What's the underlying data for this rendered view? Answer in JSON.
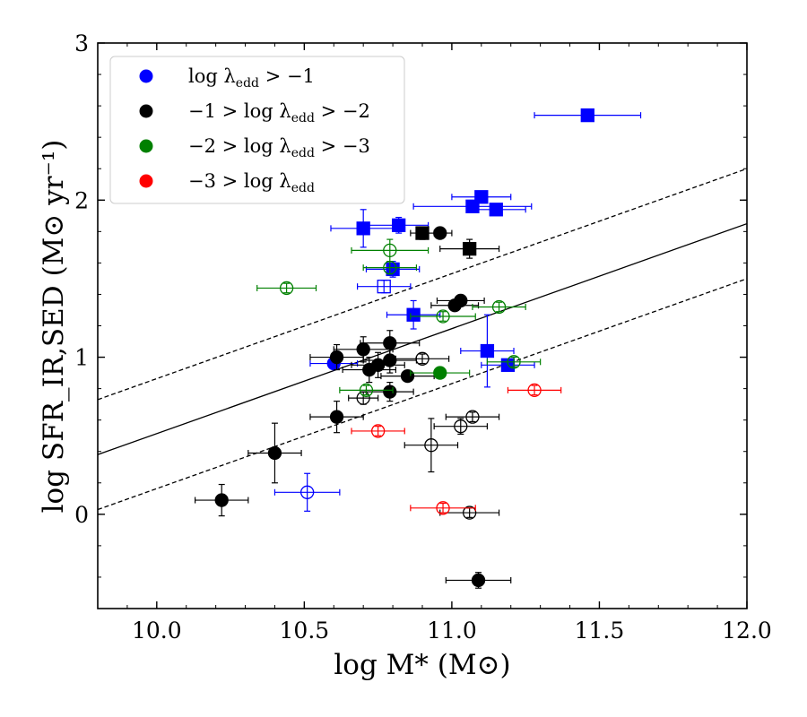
{
  "chart_data": {
    "type": "scatter",
    "xlabel": "log M* (M⊙)",
    "ylabel": "log SFR_IR,SED (M⊙ yr⁻¹)",
    "xlim": [
      9.8,
      12.0
    ],
    "ylim": [
      -0.6,
      3.0
    ],
    "x_ticks": [
      10.0,
      10.5,
      11.0,
      11.5,
      12.0
    ],
    "x_tick_labels": [
      "10.0",
      "10.5",
      "11.0",
      "11.5",
      "12.0"
    ],
    "y_ticks": [
      0,
      1,
      2,
      3
    ],
    "y_tick_labels": [
      "0",
      "1",
      "2",
      "3"
    ],
    "grid": false,
    "legend_position": "top-left",
    "legend": [
      {
        "name": "blue",
        "color": "#0000ff",
        "label_parts": [
          "log λ",
          "edd",
          " > −1"
        ]
      },
      {
        "name": "black",
        "color": "#000000",
        "label_parts": [
          "−1 > log λ",
          "edd",
          " > −2"
        ]
      },
      {
        "name": "green",
        "color": "#008000",
        "label_parts": [
          "−2 > log λ",
          "edd",
          " > −3"
        ]
      },
      {
        "name": "red",
        "color": "#ff0000",
        "label_parts": [
          "−3 > log λ",
          "edd",
          ""
        ]
      }
    ],
    "lines": [
      {
        "name": "relation",
        "style": "solid",
        "x": [
          9.8,
          12.0
        ],
        "y": [
          0.38,
          1.85
        ]
      },
      {
        "name": "upper-scatter",
        "style": "dashed",
        "x": [
          9.8,
          12.0
        ],
        "y": [
          0.73,
          2.2
        ]
      },
      {
        "name": "lower-scatter",
        "style": "dashed",
        "x": [
          9.8,
          12.0
        ],
        "y": [
          0.03,
          1.5
        ]
      }
    ],
    "points": [
      {
        "series": "blue",
        "marker": "square",
        "filled": true,
        "x": 11.46,
        "y": 2.54,
        "xerr": 0.18,
        "yerr": 0
      },
      {
        "series": "blue",
        "marker": "square",
        "filled": true,
        "x": 11.1,
        "y": 2.02,
        "xerr": 0.1,
        "yerr": 0
      },
      {
        "series": "blue",
        "marker": "square",
        "filled": true,
        "x": 11.07,
        "y": 1.96,
        "xerr": 0.2,
        "yerr": 0
      },
      {
        "series": "blue",
        "marker": "square",
        "filled": true,
        "x": 11.15,
        "y": 1.94,
        "xerr": 0.1,
        "yerr": 0
      },
      {
        "series": "blue",
        "marker": "square",
        "filled": true,
        "x": 10.7,
        "y": 1.82,
        "xerr": 0.11,
        "yerr": 0.12
      },
      {
        "series": "blue",
        "marker": "square",
        "filled": true,
        "x": 10.82,
        "y": 1.84,
        "xerr": 0.1,
        "yerr": 0.05
      },
      {
        "series": "blue",
        "marker": "square",
        "filled": true,
        "x": 10.8,
        "y": 1.56,
        "xerr": 0.09,
        "yerr": 0.05
      },
      {
        "series": "blue",
        "marker": "square",
        "filled": false,
        "x": 10.77,
        "y": 1.45,
        "xerr": 0.09,
        "yerr": 0.04
      },
      {
        "series": "blue",
        "marker": "square",
        "filled": true,
        "x": 10.87,
        "y": 1.27,
        "xerr": 0.09,
        "yerr": 0.09
      },
      {
        "series": "blue",
        "marker": "square",
        "filled": true,
        "x": 11.12,
        "y": 1.04,
        "xerr": 0.09,
        "yerr": 0.23
      },
      {
        "series": "blue",
        "marker": "square",
        "filled": true,
        "x": 11.19,
        "y": 0.95,
        "xerr": 0.09,
        "yerr": 0
      },
      {
        "series": "blue",
        "marker": "circle",
        "filled": true,
        "x": 10.6,
        "y": 0.96,
        "xerr": 0.08,
        "yerr": 0
      },
      {
        "series": "blue",
        "marker": "circle",
        "filled": false,
        "x": 10.51,
        "y": 0.14,
        "xerr": 0.11,
        "yerr": 0.12
      },
      {
        "series": "black",
        "marker": "square",
        "filled": true,
        "x": 10.9,
        "y": 1.79,
        "xerr": 0.04,
        "yerr": 0.04
      },
      {
        "series": "black",
        "marker": "square",
        "filled": true,
        "x": 11.06,
        "y": 1.69,
        "xerr": 0.1,
        "yerr": 0.06
      },
      {
        "series": "black",
        "marker": "circle",
        "filled": true,
        "x": 10.96,
        "y": 1.79,
        "xerr": 0.04,
        "yerr": 0
      },
      {
        "series": "black",
        "marker": "circle",
        "filled": true,
        "x": 11.01,
        "y": 1.33,
        "xerr": 0.08,
        "yerr": 0
      },
      {
        "series": "black",
        "marker": "circle",
        "filled": true,
        "x": 11.03,
        "y": 1.36,
        "xerr": 0.08,
        "yerr": 0
      },
      {
        "series": "black",
        "marker": "circle",
        "filled": true,
        "x": 10.79,
        "y": 1.09,
        "xerr": 0.1,
        "yerr": 0.08
      },
      {
        "series": "black",
        "marker": "circle",
        "filled": true,
        "x": 10.7,
        "y": 1.05,
        "xerr": 0.1,
        "yerr": 0.08
      },
      {
        "series": "black",
        "marker": "circle",
        "filled": true,
        "x": 10.61,
        "y": 1.0,
        "xerr": 0.09,
        "yerr": 0.08
      },
      {
        "series": "black",
        "marker": "circle",
        "filled": true,
        "x": 10.79,
        "y": 0.98,
        "xerr": 0.09,
        "yerr": 0.08
      },
      {
        "series": "black",
        "marker": "circle",
        "filled": true,
        "x": 10.75,
        "y": 0.95,
        "xerr": 0.09,
        "yerr": 0.08
      },
      {
        "series": "black",
        "marker": "circle",
        "filled": true,
        "x": 10.72,
        "y": 0.92,
        "xerr": 0.09,
        "yerr": 0.08
      },
      {
        "series": "black",
        "marker": "circle",
        "filled": true,
        "x": 10.85,
        "y": 0.88,
        "xerr": 0.09,
        "yerr": 0
      },
      {
        "series": "black",
        "marker": "circle",
        "filled": true,
        "x": 10.79,
        "y": 0.78,
        "xerr": 0.08,
        "yerr": 0.06
      },
      {
        "series": "black",
        "marker": "circle",
        "filled": true,
        "x": 10.61,
        "y": 0.62,
        "xerr": 0.09,
        "yerr": 0.1
      },
      {
        "series": "black",
        "marker": "circle",
        "filled": true,
        "x": 10.4,
        "y": 0.39,
        "xerr": 0.09,
        "yerr": 0.19
      },
      {
        "series": "black",
        "marker": "circle",
        "filled": true,
        "x": 10.22,
        "y": 0.09,
        "xerr": 0.09,
        "yerr": 0.1
      },
      {
        "series": "black",
        "marker": "circle",
        "filled": true,
        "x": 11.09,
        "y": -0.42,
        "xerr": 0.11,
        "yerr": 0.05
      },
      {
        "series": "black",
        "marker": "circle",
        "filled": false,
        "x": 10.9,
        "y": 0.99,
        "xerr": 0.09,
        "yerr": 0.03
      },
      {
        "series": "black",
        "marker": "circle",
        "filled": false,
        "x": 10.7,
        "y": 0.74,
        "xerr": 0.05,
        "yerr": 0.04
      },
      {
        "series": "black",
        "marker": "circle",
        "filled": false,
        "x": 11.07,
        "y": 0.62,
        "xerr": 0.09,
        "yerr": 0.03
      },
      {
        "series": "black",
        "marker": "circle",
        "filled": false,
        "x": 11.03,
        "y": 0.56,
        "xerr": 0.09,
        "yerr": 0.05
      },
      {
        "series": "black",
        "marker": "circle",
        "filled": false,
        "x": 10.93,
        "y": 0.44,
        "xerr": 0.09,
        "yerr": 0.17
      },
      {
        "series": "black",
        "marker": "circle",
        "filled": false,
        "x": 11.06,
        "y": 0.01,
        "xerr": 0.1,
        "yerr": 0.03
      },
      {
        "series": "green",
        "marker": "circle",
        "filled": false,
        "x": 10.79,
        "y": 1.68,
        "xerr": 0.13,
        "yerr": 0.07
      },
      {
        "series": "green",
        "marker": "circle",
        "filled": false,
        "x": 10.79,
        "y": 1.57,
        "xerr": 0.09,
        "yerr": 0.04
      },
      {
        "series": "green",
        "marker": "circle",
        "filled": false,
        "x": 10.44,
        "y": 1.44,
        "xerr": 0.1,
        "yerr": 0.03
      },
      {
        "series": "green",
        "marker": "circle",
        "filled": false,
        "x": 10.97,
        "y": 1.26,
        "xerr": 0.11,
        "yerr": 0.03
      },
      {
        "series": "green",
        "marker": "circle",
        "filled": false,
        "x": 11.16,
        "y": 1.32,
        "xerr": 0.09,
        "yerr": 0.03
      },
      {
        "series": "green",
        "marker": "circle",
        "filled": false,
        "x": 11.21,
        "y": 0.97,
        "xerr": 0.09,
        "yerr": 0.03
      },
      {
        "series": "green",
        "marker": "circle",
        "filled": false,
        "x": 10.71,
        "y": 0.79,
        "xerr": 0.09,
        "yerr": 0.03
      },
      {
        "series": "green",
        "marker": "circle",
        "filled": true,
        "x": 10.96,
        "y": 0.9,
        "xerr": 0.1,
        "yerr": 0
      },
      {
        "series": "red",
        "marker": "circle",
        "filled": false,
        "x": 11.28,
        "y": 0.79,
        "xerr": 0.09,
        "yerr": 0.03
      },
      {
        "series": "red",
        "marker": "circle",
        "filled": false,
        "x": 10.75,
        "y": 0.53,
        "xerr": 0.09,
        "yerr": 0.03
      },
      {
        "series": "red",
        "marker": "circle",
        "filled": false,
        "x": 10.97,
        "y": 0.04,
        "xerr": 0.11,
        "yerr": 0.03
      }
    ]
  }
}
